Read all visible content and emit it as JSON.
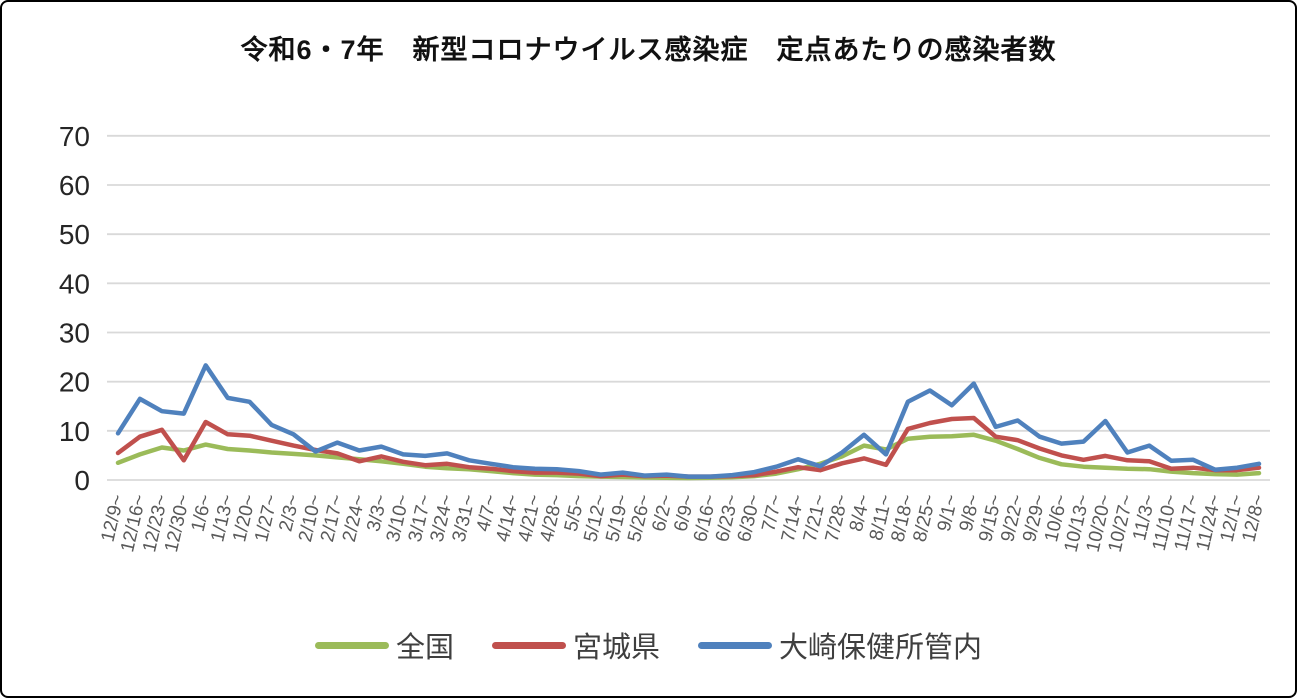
{
  "chart_data": {
    "type": "line",
    "title": "令和6・7年　新型コロナウイルス感染症　定点あたりの感染者数",
    "xlabel": "",
    "ylabel": "",
    "ylim": [
      0,
      70
    ],
    "yticks": [
      0,
      10,
      20,
      30,
      40,
      50,
      60,
      70
    ],
    "grid": true,
    "legend_position": "bottom",
    "categories": [
      "12/9~",
      "12/16~",
      "12/23~",
      "12/30~",
      "1/6~",
      "1/13~",
      "1/20~",
      "1/27~",
      "2/3~",
      "2/10~",
      "2/17~",
      "2/24~",
      "3/3~",
      "3/10~",
      "3/17~",
      "3/24~",
      "3/31~",
      "4/7~",
      "4/14~",
      "4/21~",
      "4/28~",
      "5/5~",
      "5/12~",
      "5/19~",
      "5/26~",
      "6/2~",
      "6/9~",
      "6/16~",
      "6/23~",
      "6/30~",
      "7/7~",
      "7/14~",
      "7/21~",
      "7/28~",
      "8/4~",
      "8/11~",
      "8/18~",
      "8/25~",
      "9/1~",
      "9/8~",
      "9/15~",
      "9/22~",
      "9/29~",
      "10/6~",
      "10/13~",
      "10/20~",
      "10/27~",
      "11/3~",
      "11/10~",
      "11/17~",
      "11/24~",
      "12/1~",
      "12/8~"
    ],
    "series": [
      {
        "name": "全国",
        "color": "#9BBB59",
        "values": [
          3.5,
          5.2,
          6.6,
          6.0,
          7.2,
          6.3,
          6.0,
          5.6,
          5.3,
          5.0,
          4.6,
          4.2,
          3.8,
          3.3,
          2.7,
          2.4,
          2.2,
          1.8,
          1.4,
          1.1,
          1.0,
          0.8,
          0.7,
          0.6,
          0.5,
          0.45,
          0.4,
          0.45,
          0.55,
          0.8,
          1.3,
          2.2,
          3.3,
          4.8,
          7.0,
          6.2,
          8.4,
          8.8,
          8.9,
          9.2,
          8.0,
          6.3,
          4.5,
          3.2,
          2.7,
          2.5,
          2.3,
          2.2,
          1.7,
          1.4,
          1.2,
          1.1,
          1.4
        ]
      },
      {
        "name": "宮城県",
        "color": "#C0504D",
        "values": [
          5.5,
          8.8,
          10.2,
          4.0,
          11.8,
          9.3,
          9.0,
          8.0,
          7.0,
          6.1,
          5.4,
          3.8,
          4.8,
          3.7,
          3.0,
          3.3,
          2.6,
          2.3,
          1.8,
          1.5,
          1.5,
          1.3,
          0.8,
          1.1,
          0.8,
          0.9,
          0.7,
          0.7,
          0.8,
          1.0,
          1.7,
          2.6,
          2.0,
          3.4,
          4.4,
          3.1,
          10.4,
          11.6,
          12.4,
          12.6,
          8.8,
          8.1,
          6.4,
          5.0,
          4.1,
          4.9,
          4.0,
          3.8,
          2.3,
          2.5,
          2.0,
          2.0,
          2.5
        ]
      },
      {
        "name": "大崎保健所管内",
        "color": "#4F81BD",
        "values": [
          9.5,
          16.5,
          14.0,
          13.5,
          23.3,
          16.7,
          15.9,
          11.2,
          9.3,
          5.8,
          7.6,
          6.0,
          6.8,
          5.2,
          4.9,
          5.4,
          4.0,
          3.3,
          2.6,
          2.3,
          2.2,
          1.8,
          1.1,
          1.5,
          0.9,
          1.1,
          0.7,
          0.7,
          1.0,
          1.6,
          2.7,
          4.2,
          2.8,
          5.6,
          9.2,
          5.2,
          15.9,
          18.2,
          15.2,
          19.6,
          10.8,
          12.1,
          8.8,
          7.4,
          7.8,
          12.0,
          5.6,
          7.0,
          3.9,
          4.1,
          2.1,
          2.5,
          3.3
        ]
      }
    ]
  },
  "style": {
    "grid_color": "#D9D9D9",
    "ytick_color": "#262626",
    "xtick_color": "#595959",
    "line_width": 4.5
  }
}
